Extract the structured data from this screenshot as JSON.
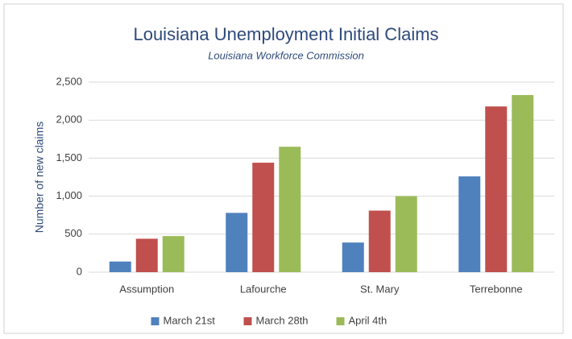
{
  "chart_data": {
    "type": "bar",
    "title": "Louisiana Unemployment Initial Claims",
    "subtitle": "Louisiana Workforce Commission",
    "y_label": "Number of new claims",
    "categories": [
      "Assumption",
      "Lafourche",
      "St. Mary",
      "Terrebonne"
    ],
    "series": [
      {
        "name": "March 21st",
        "color": "#4f81bd",
        "values": [
          140,
          780,
          390,
          1260
        ]
      },
      {
        "name": "March 28th",
        "color": "#c0504d",
        "values": [
          440,
          1440,
          810,
          2180
        ]
      },
      {
        "name": "April 4th",
        "color": "#9bbb59",
        "values": [
          475,
          1650,
          1000,
          2330
        ]
      }
    ],
    "ylim": [
      0,
      2500
    ],
    "yticks": [
      0,
      500,
      {
        "value": 1000,
        "label": "1,000"
      },
      {
        "value": 1500,
        "label": "1,500"
      },
      {
        "value": 2000,
        "label": "2,000"
      },
      {
        "value": 2500,
        "label": "2,500"
      }
    ],
    "grid": true,
    "legend": "bottom"
  }
}
